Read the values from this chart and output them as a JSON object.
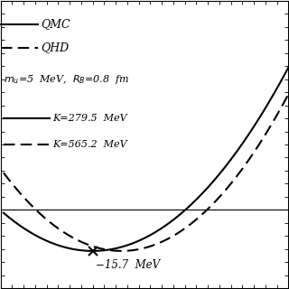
{
  "legend_qmc": "QMC",
  "legend_qhd": "QHD",
  "param_text1": "$m_u$=5  MeV,  $R_B$=0.8  fm",
  "k_qmc_text": "K=279.5  MeV",
  "k_qhd_text": "K=565.2  MeV",
  "min_label": "−15.7  MeV",
  "x_min": 0.0,
  "x_max": 0.5,
  "y_min": -30,
  "y_max": 80,
  "rho0_qmc": 0.16,
  "rho0_qhd": 0.21,
  "E_min_qmc": -15.7,
  "E_min_qhd": -15.7,
  "K_qmc": 279.5,
  "K_qhd": 565.2,
  "background_color": "#ffffff",
  "solid_color": "#000000",
  "dashed_color": "#000000"
}
